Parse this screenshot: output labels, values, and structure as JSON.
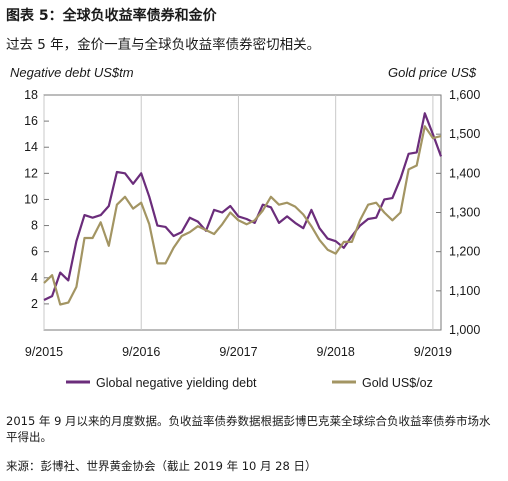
{
  "figure": {
    "title": "图表 5：全球负收益率债券和金价",
    "subtitle": "过去 5 年，金价一直与全球负收益率债券密切相关。",
    "note": "2015 年 9 月以来的月度数据。负收益率债券数据根据彭博巴克莱全球综合负收益率债券市场水平得出。",
    "source": "来源：彭博社、世界黄金协会（截止 2019 年 10 月 28 日）"
  },
  "chart_data": {
    "type": "line",
    "left_axis_label": "Negative debt US$tm",
    "right_axis_label": "Gold price US$",
    "x_ticks": [
      "9/2015",
      "9/2016",
      "9/2017",
      "9/2018",
      "9/2019"
    ],
    "left_ticks": [
      "2",
      "4",
      "6",
      "8",
      "10",
      "12",
      "14",
      "16",
      "18"
    ],
    "right_ticks": [
      "1,000",
      "1,100",
      "1,200",
      "1,300",
      "1,400",
      "1,500",
      "1,600"
    ],
    "left_ylim": [
      0,
      18
    ],
    "right_ylim": [
      1000,
      1600
    ],
    "x": [
      "2015-09",
      "2015-10",
      "2015-11",
      "2015-12",
      "2016-01",
      "2016-02",
      "2016-03",
      "2016-04",
      "2016-05",
      "2016-06",
      "2016-07",
      "2016-08",
      "2016-09",
      "2016-10",
      "2016-11",
      "2016-12",
      "2017-01",
      "2017-02",
      "2017-03",
      "2017-04",
      "2017-05",
      "2017-06",
      "2017-07",
      "2017-08",
      "2017-09",
      "2017-10",
      "2017-11",
      "2017-12",
      "2018-01",
      "2018-02",
      "2018-03",
      "2018-04",
      "2018-05",
      "2018-06",
      "2018-07",
      "2018-08",
      "2018-09",
      "2018-10",
      "2018-11",
      "2018-12",
      "2019-01",
      "2019-02",
      "2019-03",
      "2019-04",
      "2019-05",
      "2019-06",
      "2019-07",
      "2019-08",
      "2019-09",
      "2019-10"
    ],
    "series": [
      {
        "name": "Global negative yielding debt",
        "axis": "left",
        "color": "#6b2d7b",
        "values": [
          2.3,
          2.6,
          4.4,
          3.8,
          6.8,
          8.8,
          8.6,
          8.8,
          9.5,
          12.1,
          12.0,
          11.2,
          12.0,
          10.2,
          8.0,
          7.9,
          7.2,
          7.5,
          8.6,
          8.3,
          7.6,
          9.2,
          9.0,
          9.5,
          8.7,
          8.5,
          8.2,
          9.6,
          9.4,
          8.2,
          8.7,
          8.2,
          7.8,
          9.2,
          7.8,
          7.0,
          6.8,
          6.3,
          7.2,
          8.0,
          8.5,
          8.6,
          10.0,
          10.1,
          11.6,
          13.5,
          13.6,
          16.6,
          15.0,
          13.3
        ]
      },
      {
        "name": "Gold US$/oz",
        "axis": "right",
        "color": "#a39563",
        "values": [
          1120,
          1140,
          1065,
          1070,
          1110,
          1235,
          1235,
          1275,
          1215,
          1320,
          1340,
          1310,
          1325,
          1270,
          1170,
          1170,
          1210,
          1240,
          1250,
          1265,
          1255,
          1245,
          1270,
          1300,
          1280,
          1270,
          1280,
          1305,
          1340,
          1320,
          1325,
          1315,
          1295,
          1265,
          1230,
          1205,
          1195,
          1225,
          1225,
          1280,
          1320,
          1325,
          1300,
          1280,
          1300,
          1410,
          1420,
          1520,
          1490,
          1495
        ]
      }
    ]
  }
}
